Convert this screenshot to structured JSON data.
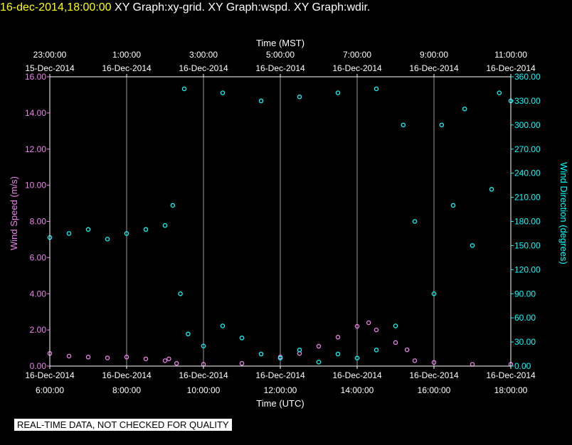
{
  "header": {
    "timestamp": "16-dec-2014,18:00:00",
    "graphs": [
      "XY Graph:xy-grid.",
      "XY Graph:wspd.",
      "XY Graph:wdir."
    ]
  },
  "footer": {
    "quality_note": "REAL-TIME DATA, NOT CHECKED FOR QUALITY"
  },
  "chart_data": {
    "type": "scatter",
    "xlabel_top": "Time (MST)",
    "xlabel_bottom": "Time (UTC)",
    "ylabel_left": "Wind Speed (m/s)",
    "ylabel_right": "Wind Direction (degrees)",
    "x_range_hours_utc": [
      6,
      18
    ],
    "top_ticks": [
      {
        "time": "23:00:00",
        "date": "15-Dec-2014"
      },
      {
        "time": "1:00:00",
        "date": "16-Dec-2014"
      },
      {
        "time": "3:00:00",
        "date": "16-Dec-2014"
      },
      {
        "time": "5:00:00",
        "date": "16-Dec-2014"
      },
      {
        "time": "7:00:00",
        "date": "16-Dec-2014"
      },
      {
        "time": "9:00:00",
        "date": "16-Dec-2014"
      },
      {
        "time": "11:00:00",
        "date": "16-Dec-2014"
      }
    ],
    "bottom_ticks": [
      {
        "date": "16-Dec-2014",
        "time": "6:00:00"
      },
      {
        "date": "16-Dec-2014",
        "time": "8:00:00"
      },
      {
        "date": "16-Dec-2014",
        "time": "10:00:00"
      },
      {
        "date": "16-Dec-2014",
        "time": "12:00:00"
      },
      {
        "date": "16-Dec-2014",
        "time": "14:00:00"
      },
      {
        "date": "16-Dec-2014",
        "time": "16:00:00"
      },
      {
        "date": "16-Dec-2014",
        "time": "18:00:00"
      }
    ],
    "left_axis": {
      "range": [
        0,
        16
      ],
      "ticks": [
        "0.00",
        "2.00",
        "4.00",
        "6.00",
        "8.00",
        "10.00",
        "12.00",
        "14.00",
        "16.00"
      ],
      "color": "#ee82ee"
    },
    "right_axis": {
      "range": [
        0,
        360
      ],
      "ticks": [
        "0.00",
        "30.00",
        "60.00",
        "90.00",
        "120.00",
        "150.00",
        "180.00",
        "210.00",
        "240.00",
        "270.00",
        "300.00",
        "330.00",
        "360.00"
      ],
      "color": "#00ffff"
    },
    "grid": "vertical",
    "series": [
      {
        "name": "wspd",
        "color": "#ee82ee",
        "axis": "left",
        "points": [
          [
            6.0,
            0.7
          ],
          [
            6.5,
            0.55
          ],
          [
            7.0,
            0.5
          ],
          [
            7.5,
            0.45
          ],
          [
            8.0,
            0.5
          ],
          [
            8.5,
            0.4
          ],
          [
            9.0,
            0.3
          ],
          [
            9.1,
            0.4
          ],
          [
            9.3,
            0.15
          ],
          [
            10.0,
            0.1
          ],
          [
            11.0,
            0.15
          ],
          [
            12.0,
            0.5
          ],
          [
            12.5,
            0.7
          ],
          [
            13.0,
            1.1
          ],
          [
            13.5,
            1.6
          ],
          [
            14.0,
            2.2
          ],
          [
            14.3,
            2.4
          ],
          [
            14.5,
            2.0
          ],
          [
            15.0,
            1.3
          ],
          [
            15.3,
            0.9
          ],
          [
            15.5,
            0.3
          ],
          [
            16.0,
            0.2
          ],
          [
            17.0,
            0.1
          ],
          [
            18.0,
            0.1
          ]
        ]
      },
      {
        "name": "wdir",
        "color": "#00ffff",
        "axis": "right",
        "points": [
          [
            6.0,
            160
          ],
          [
            6.5,
            165
          ],
          [
            7.0,
            170
          ],
          [
            7.5,
            158
          ],
          [
            8.0,
            165
          ],
          [
            8.5,
            170
          ],
          [
            9.0,
            175
          ],
          [
            9.2,
            200
          ],
          [
            9.4,
            90
          ],
          [
            9.6,
            40
          ],
          [
            10.0,
            25
          ],
          [
            10.5,
            50
          ],
          [
            11.0,
            35
          ],
          [
            11.5,
            15
          ],
          [
            12.0,
            10
          ],
          [
            12.5,
            20
          ],
          [
            13.0,
            5
          ],
          [
            13.5,
            15
          ],
          [
            14.0,
            10
          ],
          [
            14.5,
            20
          ],
          [
            15.0,
            50
          ],
          [
            15.5,
            180
          ],
          [
            16.0,
            90
          ],
          [
            16.5,
            200
          ],
          [
            17.0,
            150
          ],
          [
            17.5,
            220
          ],
          [
            18.0,
            330
          ],
          [
            9.5,
            345
          ],
          [
            10.5,
            340
          ],
          [
            11.5,
            330
          ],
          [
            12.5,
            335
          ],
          [
            13.5,
            340
          ],
          [
            14.5,
            345
          ],
          [
            15.2,
            300
          ],
          [
            16.2,
            300
          ],
          [
            16.8,
            320
          ],
          [
            17.7,
            340
          ]
        ]
      }
    ]
  }
}
